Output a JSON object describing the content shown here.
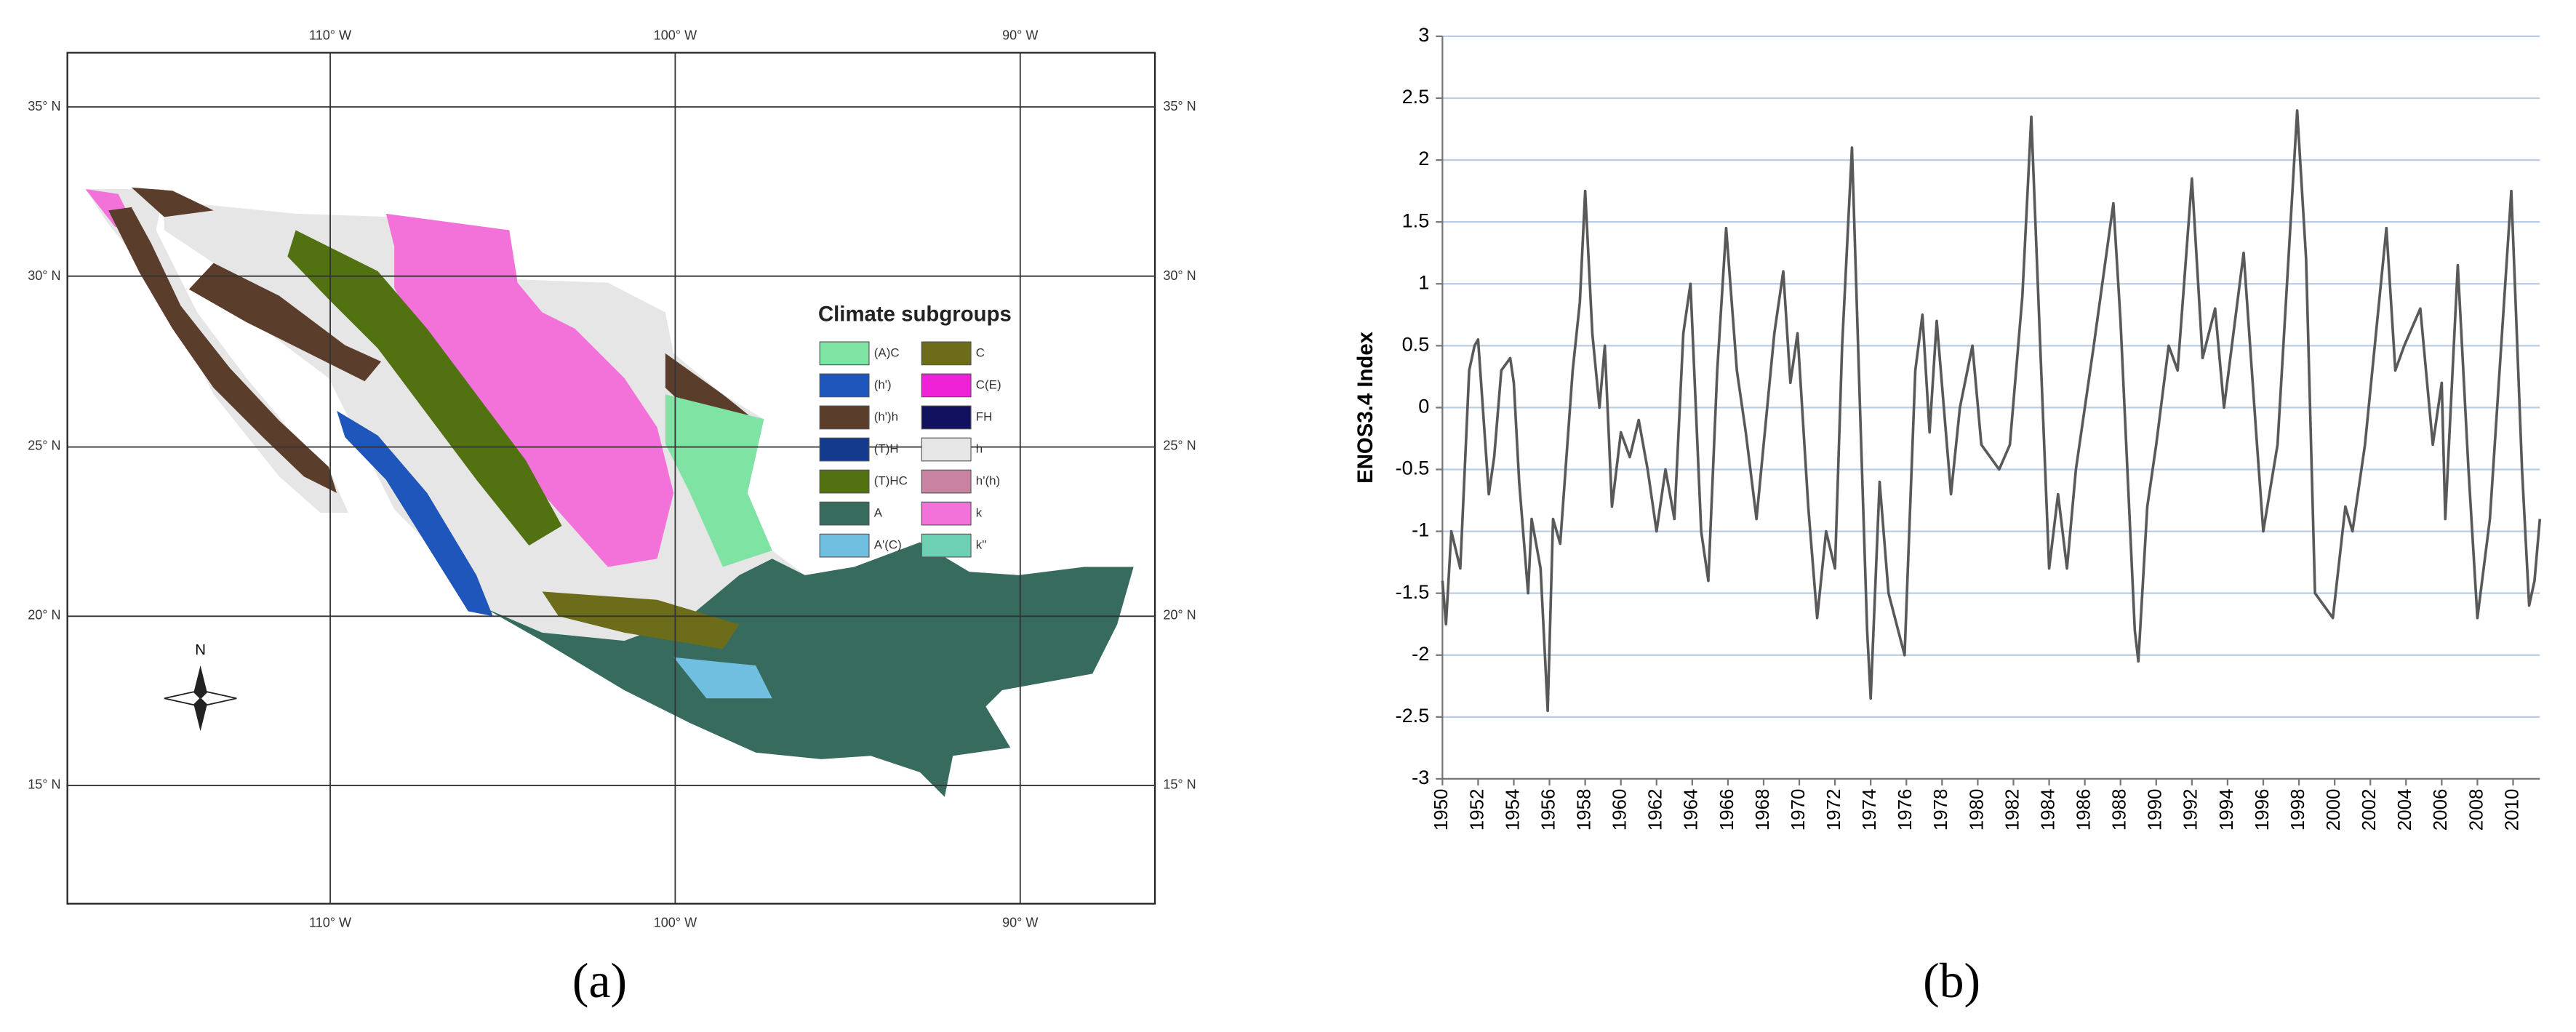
{
  "map": {
    "lon_labels": [
      "110° W",
      "100° W",
      "90° W"
    ],
    "lat_labels": [
      "35° N",
      "30° N",
      "25° N",
      "20° N",
      "15° N"
    ],
    "north": "N",
    "legend": {
      "title": "Climate subgroups",
      "items": [
        {
          "name": "(A)C",
          "color": "#7fe3a4"
        },
        {
          "name": "(h')",
          "color": "#1f56bb"
        },
        {
          "name": "(h')h",
          "color": "#5b3d2c"
        },
        {
          "name": "(T)H",
          "color": "#133a8c"
        },
        {
          "name": "(T)HC",
          "color": "#527212"
        },
        {
          "name": "A",
          "color": "#366b5d"
        },
        {
          "name": "A'(C)",
          "color": "#70bfe0"
        },
        {
          "name": "C",
          "color": "#6c6c1a"
        },
        {
          "name": "C(E)",
          "color": "#f022d8"
        },
        {
          "name": "FH",
          "color": "#111160"
        },
        {
          "name": "h",
          "color": "#e6e6e6"
        },
        {
          "name": "h'(h)",
          "color": "#c882a2"
        },
        {
          "name": "k",
          "color": "#f272da"
        },
        {
          "name": "k''",
          "color": "#6ed0b2"
        }
      ]
    }
  },
  "panel_labels": [
    "(a)",
    "(b)"
  ],
  "chart_data": {
    "type": "line",
    "y_label": "ENOS3.4 Index",
    "color": "#595959",
    "x": [
      1950.0,
      1950.2,
      1950.5,
      1951.0,
      1951.5,
      1951.8,
      1952.0,
      1952.6,
      1952.9,
      1953.3,
      1953.8,
      1954.0,
      1954.3,
      1954.8,
      1955.0,
      1955.5,
      1955.9,
      1956.2,
      1956.6,
      1957.3,
      1957.7,
      1958.0,
      1958.4,
      1958.8,
      1959.1,
      1959.5,
      1960.0,
      1960.5,
      1961.0,
      1961.5,
      1962.0,
      1962.5,
      1963.0,
      1963.5,
      1963.9,
      1964.5,
      1964.9,
      1965.4,
      1965.9,
      1966.5,
      1967.0,
      1967.6,
      1968.0,
      1968.6,
      1969.1,
      1969.5,
      1969.9,
      1970.5,
      1971.0,
      1971.5,
      1972.0,
      1972.4,
      1972.95,
      1973.4,
      1973.8,
      1974.0,
      1974.5,
      1975.0,
      1975.9,
      1976.5,
      1976.9,
      1977.3,
      1977.7,
      1978.5,
      1979.0,
      1979.7,
      1980.2,
      1981.2,
      1981.8,
      1982.5,
      1983.0,
      1983.5,
      1984.0,
      1984.5,
      1985.0,
      1985.5,
      1986.5,
      1987.6,
      1988.0,
      1988.8,
      1989.0,
      1989.5,
      1990.0,
      1990.7,
      1991.2,
      1992.0,
      1992.6,
      1993.3,
      1993.8,
      1994.9,
      1995.6,
      1996.0,
      1996.8,
      1997.9,
      1998.4,
      1998.9,
      1999.9,
      2000.6,
      2001.0,
      2001.7,
      2002.9,
      2003.4,
      2003.9,
      2004.8,
      2005.5,
      2006.0,
      2006.2,
      2006.9,
      2007.5,
      2008.0,
      2008.7,
      2009.9,
      2010.5,
      2010.9,
      2011.2,
      2011.5
    ],
    "values": [
      -1.4,
      -1.75,
      -1.0,
      -1.3,
      0.3,
      0.5,
      0.55,
      -0.7,
      -0.4,
      0.3,
      0.4,
      0.2,
      -0.6,
      -1.5,
      -0.9,
      -1.3,
      -2.45,
      -0.9,
      -1.1,
      0.3,
      0.85,
      1.75,
      0.6,
      0.0,
      0.5,
      -0.8,
      -0.2,
      -0.4,
      -0.1,
      -0.5,
      -1.0,
      -0.5,
      -0.9,
      0.6,
      1.0,
      -1.0,
      -1.4,
      0.3,
      1.45,
      0.3,
      -0.2,
      -0.9,
      -0.3,
      0.6,
      1.1,
      0.2,
      0.6,
      -0.8,
      -1.7,
      -1.0,
      -1.3,
      0.5,
      2.1,
      0.0,
      -1.8,
      -2.35,
      -0.6,
      -1.5,
      -2.0,
      0.3,
      0.75,
      -0.2,
      0.7,
      -0.7,
      0.0,
      0.5,
      -0.3,
      -0.5,
      -0.3,
      0.9,
      2.35,
      0.5,
      -1.3,
      -0.7,
      -1.3,
      -0.5,
      0.5,
      1.65,
      0.7,
      -1.8,
      -2.05,
      -0.8,
      -0.3,
      0.5,
      0.3,
      1.85,
      0.4,
      0.8,
      0.0,
      1.25,
      -0.2,
      -1.0,
      -0.3,
      2.4,
      1.2,
      -1.5,
      -1.7,
      -0.8,
      -1.0,
      -0.3,
      1.45,
      0.3,
      0.5,
      0.8,
      -0.3,
      0.2,
      -0.9,
      1.15,
      -0.5,
      -1.7,
      -0.9,
      1.75,
      -0.5,
      -1.6,
      -1.4,
      -0.9
    ],
    "xlim": [
      1950,
      2011.5
    ],
    "xticks": [
      1950,
      1952,
      1954,
      1956,
      1958,
      1960,
      1962,
      1964,
      1966,
      1968,
      1970,
      1972,
      1974,
      1976,
      1978,
      1980,
      1982,
      1984,
      1986,
      1988,
      1990,
      1992,
      1994,
      1996,
      1998,
      2000,
      2002,
      2004,
      2006,
      2008,
      2010
    ],
    "ylim": [
      -3,
      3
    ],
    "yticks": [
      -3,
      -2.5,
      -2,
      -1.5,
      -1,
      -0.5,
      0,
      0.5,
      1,
      1.5,
      2,
      2.5,
      3
    ],
    "grid": true
  }
}
